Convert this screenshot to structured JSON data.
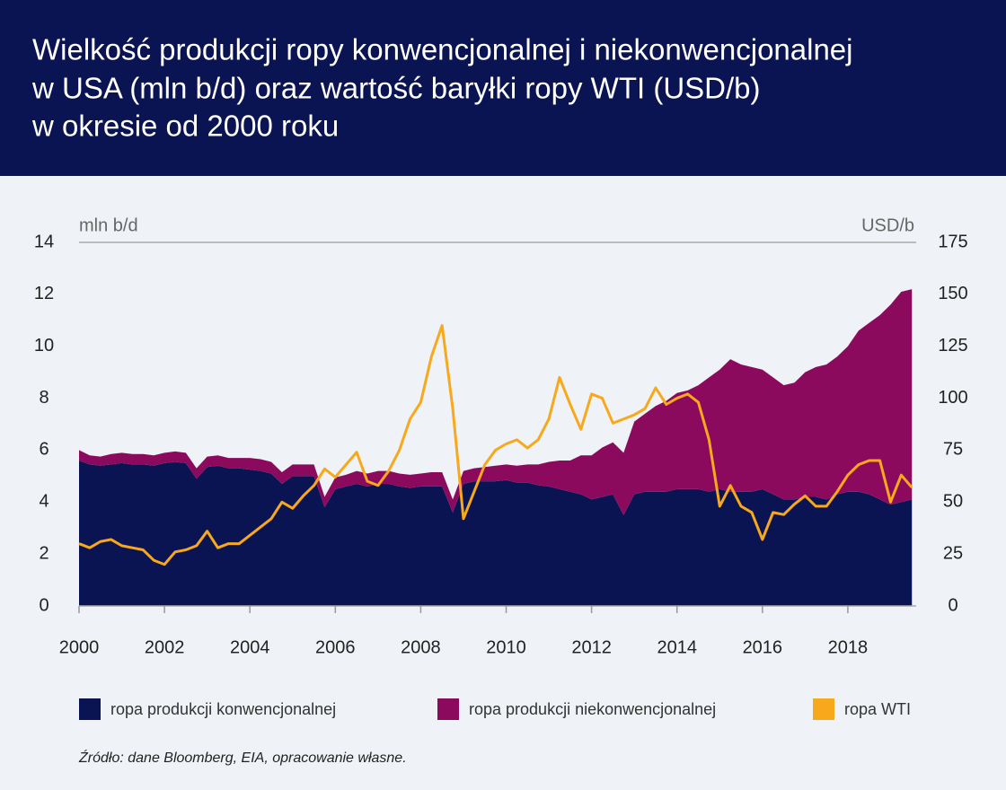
{
  "chart_data": {
    "type": "area",
    "title": [
      "Wielkość produkcji ropy konwencjonalnej i niekonwencjonalnej",
      "w USA (mln b/d) oraz wartość baryłki ropy WTI (USD/b)",
      "w okresie od 2000 roku"
    ],
    "y_label": "mln b/d",
    "y2_label": "USD/b",
    "source": "Źródło: dane Bloomberg, EIA, opracowanie własne.",
    "x": [
      2000,
      2000.25,
      2000.5,
      2000.75,
      2001,
      2001.25,
      2001.5,
      2001.75,
      2002,
      2002.25,
      2002.5,
      2002.75,
      2003,
      2003.25,
      2003.5,
      2003.75,
      2004,
      2004.25,
      2004.5,
      2004.75,
      2005,
      2005.25,
      2005.5,
      2005.75,
      2006,
      2006.25,
      2006.5,
      2006.75,
      2007,
      2007.25,
      2007.5,
      2007.75,
      2008,
      2008.25,
      2008.5,
      2008.75,
      2009,
      2009.25,
      2009.5,
      2009.75,
      2010,
      2010.25,
      2010.5,
      2010.75,
      2011,
      2011.25,
      2011.5,
      2011.75,
      2012,
      2012.25,
      2012.5,
      2012.75,
      2013,
      2013.25,
      2013.5,
      2013.75,
      2014,
      2014.25,
      2014.5,
      2014.75,
      2015,
      2015.25,
      2015.5,
      2015.75,
      2016,
      2016.25,
      2016.5,
      2016.75,
      2017,
      2017.25,
      2017.5,
      2017.75,
      2018,
      2018.25,
      2018.5,
      2018.75,
      2019,
      2019.25,
      2019.5
    ],
    "xlim": [
      2000,
      2019.6
    ],
    "xticks": [
      2000,
      2002,
      2004,
      2006,
      2008,
      2010,
      2012,
      2014,
      2016,
      2018
    ],
    "ylim": [
      0,
      14
    ],
    "yticks": [
      0,
      2,
      4,
      6,
      8,
      10,
      12,
      14
    ],
    "y2lim": [
      0,
      175
    ],
    "y2ticks": [
      0,
      25,
      50,
      75,
      100,
      125,
      150,
      175
    ],
    "stacked": true,
    "series": [
      {
        "name": "ropa produkcji konwencjonalnej",
        "type": "area",
        "color": "#0b1452",
        "values": [
          5.6,
          5.45,
          5.4,
          5.45,
          5.5,
          5.45,
          5.45,
          5.4,
          5.5,
          5.55,
          5.5,
          4.9,
          5.35,
          5.4,
          5.3,
          5.3,
          5.25,
          5.2,
          5.1,
          4.7,
          5.0,
          5.0,
          5.0,
          3.8,
          4.5,
          4.6,
          4.7,
          4.6,
          4.7,
          4.7,
          4.6,
          4.55,
          4.6,
          4.6,
          4.6,
          3.6,
          4.7,
          4.8,
          4.8,
          4.8,
          4.85,
          4.75,
          4.75,
          4.65,
          4.6,
          4.5,
          4.4,
          4.3,
          4.1,
          4.2,
          4.3,
          3.5,
          4.3,
          4.4,
          4.4,
          4.4,
          4.5,
          4.5,
          4.5,
          4.4,
          4.5,
          4.4,
          4.4,
          4.4,
          4.5,
          4.3,
          4.1,
          4.1,
          4.2,
          4.2,
          4.1,
          4.3,
          4.4,
          4.4,
          4.3,
          4.1,
          3.9,
          4.0,
          4.1
        ]
      },
      {
        "name": "ropa produkcji niekonwencjonalnej",
        "type": "area",
        "color": "#8c0a5e",
        "values": [
          0.4,
          0.35,
          0.35,
          0.4,
          0.4,
          0.4,
          0.4,
          0.4,
          0.4,
          0.4,
          0.4,
          0.4,
          0.4,
          0.4,
          0.4,
          0.4,
          0.45,
          0.45,
          0.45,
          0.45,
          0.45,
          0.45,
          0.45,
          0.4,
          0.45,
          0.45,
          0.5,
          0.5,
          0.5,
          0.5,
          0.5,
          0.5,
          0.5,
          0.55,
          0.55,
          0.5,
          0.5,
          0.5,
          0.55,
          0.6,
          0.6,
          0.65,
          0.7,
          0.8,
          0.95,
          1.1,
          1.2,
          1.5,
          1.7,
          1.9,
          2.0,
          2.4,
          2.8,
          3.0,
          3.3,
          3.5,
          3.7,
          3.8,
          4.0,
          4.4,
          4.6,
          5.1,
          4.9,
          4.8,
          4.6,
          4.5,
          4.4,
          4.5,
          4.8,
          5.0,
          5.2,
          5.3,
          5.6,
          6.2,
          6.6,
          7.1,
          7.7,
          8.1,
          8.1
        ]
      },
      {
        "name": "ropa WTI",
        "type": "line",
        "axis": "y2",
        "color": "#f7a81b",
        "values": [
          30,
          28,
          31,
          32,
          29,
          28,
          27,
          22,
          20,
          26,
          27,
          29,
          36,
          28,
          30,
          30,
          34,
          38,
          42,
          50,
          47,
          53,
          58,
          66,
          62,
          68,
          74,
          60,
          58,
          65,
          75,
          90,
          98,
          120,
          135,
          95,
          42,
          55,
          68,
          75,
          78,
          80,
          76,
          80,
          90,
          110,
          97,
          85,
          102,
          100,
          88,
          90,
          92,
          95,
          105,
          97,
          100,
          102,
          98,
          80,
          48,
          58,
          48,
          45,
          32,
          45,
          44,
          49,
          53,
          48,
          48,
          55,
          63,
          68,
          70,
          70,
          50,
          63,
          57
        ]
      }
    ]
  }
}
